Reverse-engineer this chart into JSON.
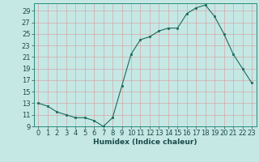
{
  "x": [
    0,
    1,
    2,
    3,
    4,
    5,
    6,
    7,
    8,
    9,
    10,
    11,
    12,
    13,
    14,
    15,
    16,
    17,
    18,
    19,
    20,
    21,
    22,
    23
  ],
  "y": [
    13,
    12.5,
    11.5,
    11,
    10.5,
    10.5,
    10,
    9,
    10.5,
    16,
    21.5,
    24,
    24.5,
    25.5,
    26,
    26,
    28.5,
    29.5,
    30,
    28,
    25,
    21.5,
    19,
    16.5
  ],
  "line_color": "#1a6b5a",
  "marker_color": "#1a6b5a",
  "bg_color": "#c5e8e5",
  "grid_color": "#d4a8a8",
  "xlabel": "Humidex (Indice chaleur)",
  "xlim": [
    -0.5,
    23.5
  ],
  "ylim": [
    9,
    30
  ],
  "yticks": [
    9,
    11,
    13,
    15,
    17,
    19,
    21,
    23,
    25,
    27,
    29
  ],
  "xticks": [
    0,
    1,
    2,
    3,
    4,
    5,
    6,
    7,
    8,
    9,
    10,
    11,
    12,
    13,
    14,
    15,
    16,
    17,
    18,
    19,
    20,
    21,
    22,
    23
  ],
  "xlabel_fontsize": 6.5,
  "tick_fontsize": 6.0,
  "line_width": 0.8,
  "marker_size": 2.0
}
